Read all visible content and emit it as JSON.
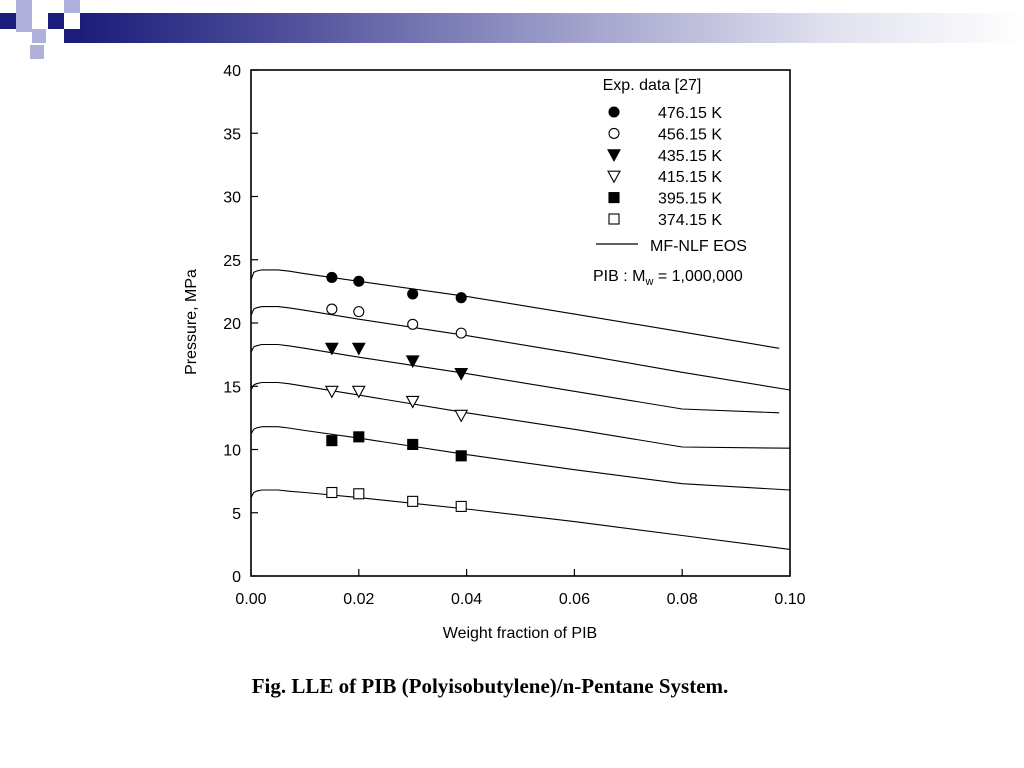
{
  "slide": {
    "caption": "Fig. LLE of PIB (Polyisobutylene)/n-Pentane System.",
    "colors": {
      "accent_dark": "#1c1c7a",
      "accent_light": "#b0b0dc"
    }
  },
  "chart_data": {
    "type": "scatter",
    "title": "",
    "xlabel": "Weight fraction of PIB",
    "ylabel": "Pressure, MPa",
    "xlim": [
      0.0,
      0.1
    ],
    "ylim": [
      0,
      40
    ],
    "x_ticks": [
      "0.00",
      "0.02",
      "0.04",
      "0.06",
      "0.08",
      "0.10"
    ],
    "y_ticks": [
      "0",
      "5",
      "10",
      "15",
      "20",
      "25",
      "30",
      "35",
      "40"
    ],
    "grid": false,
    "legend": {
      "title": "Exp. data [27]",
      "placement": "top-right",
      "line_label": "MF-NLF EOS",
      "note_prefix": "PIB : M",
      "note_sub": "w",
      "note_suffix": " = 1,000,000"
    },
    "series": [
      {
        "name": "476.15 K",
        "marker": "filled-circle",
        "x": [
          0.015,
          0.02,
          0.03,
          0.039
        ],
        "y": [
          23.6,
          23.3,
          22.3,
          22.0
        ]
      },
      {
        "name": "456.15 K",
        "marker": "open-circle",
        "x": [
          0.015,
          0.02,
          0.03,
          0.039
        ],
        "y": [
          21.1,
          20.9,
          19.9,
          19.2
        ]
      },
      {
        "name": "435.15 K",
        "marker": "filled-triangle-down",
        "x": [
          0.015,
          0.02,
          0.03,
          0.039
        ],
        "y": [
          18.0,
          18.0,
          17.0,
          16.0
        ]
      },
      {
        "name": "415.15 K",
        "marker": "open-triangle-down",
        "x": [
          0.015,
          0.02,
          0.03,
          0.039
        ],
        "y": [
          14.6,
          14.6,
          13.8,
          12.7
        ]
      },
      {
        "name": "395.15 K",
        "marker": "filled-square",
        "x": [
          0.015,
          0.02,
          0.03,
          0.039
        ],
        "y": [
          10.7,
          11.0,
          10.4,
          9.5
        ]
      },
      {
        "name": "374.15 K",
        "marker": "open-square",
        "x": [
          0.015,
          0.02,
          0.03,
          0.039
        ],
        "y": [
          6.6,
          6.5,
          5.9,
          5.5
        ]
      }
    ],
    "model_curves": [
      {
        "x": [
          0.0,
          0.0005,
          0.001,
          0.002,
          0.003,
          0.005,
          0.007,
          0.01,
          0.02,
          0.04,
          0.06,
          0.08,
          0.098
        ],
        "y": [
          23.4,
          24.0,
          24.1,
          24.2,
          24.2,
          24.2,
          24.1,
          23.9,
          23.3,
          22.1,
          20.7,
          19.3,
          18.0
        ]
      },
      {
        "x": [
          0.0,
          0.0005,
          0.001,
          0.002,
          0.003,
          0.005,
          0.007,
          0.01,
          0.02,
          0.04,
          0.06,
          0.08,
          0.1
        ],
        "y": [
          20.6,
          21.1,
          21.2,
          21.3,
          21.3,
          21.3,
          21.2,
          21.0,
          20.3,
          19.0,
          17.6,
          16.1,
          14.7
        ]
      },
      {
        "x": [
          0.0,
          0.0005,
          0.001,
          0.002,
          0.003,
          0.005,
          0.007,
          0.01,
          0.02,
          0.04,
          0.06,
          0.08,
          0.098
        ],
        "y": [
          17.7,
          18.1,
          18.2,
          18.3,
          18.3,
          18.3,
          18.2,
          18.0,
          17.3,
          16.0,
          14.6,
          13.2,
          12.9
        ]
      },
      {
        "x": [
          0.0,
          0.0005,
          0.001,
          0.002,
          0.003,
          0.005,
          0.007,
          0.01,
          0.02,
          0.04,
          0.06,
          0.08,
          0.1
        ],
        "y": [
          14.7,
          15.1,
          15.2,
          15.3,
          15.3,
          15.3,
          15.2,
          15.0,
          14.3,
          12.9,
          11.6,
          10.2,
          10.1
        ]
      },
      {
        "x": [
          0.0,
          0.0005,
          0.001,
          0.002,
          0.003,
          0.005,
          0.007,
          0.01,
          0.02,
          0.04,
          0.06,
          0.08,
          0.1
        ],
        "y": [
          11.2,
          11.6,
          11.7,
          11.8,
          11.8,
          11.8,
          11.7,
          11.5,
          10.9,
          9.6,
          8.4,
          7.3,
          6.8
        ]
      },
      {
        "x": [
          0.0,
          0.0005,
          0.001,
          0.002,
          0.003,
          0.005,
          0.007,
          0.01,
          0.02,
          0.04,
          0.06,
          0.08,
          0.1
        ],
        "y": [
          6.2,
          6.6,
          6.7,
          6.8,
          6.8,
          6.8,
          6.7,
          6.6,
          6.2,
          5.3,
          4.3,
          3.2,
          2.1
        ]
      }
    ]
  }
}
